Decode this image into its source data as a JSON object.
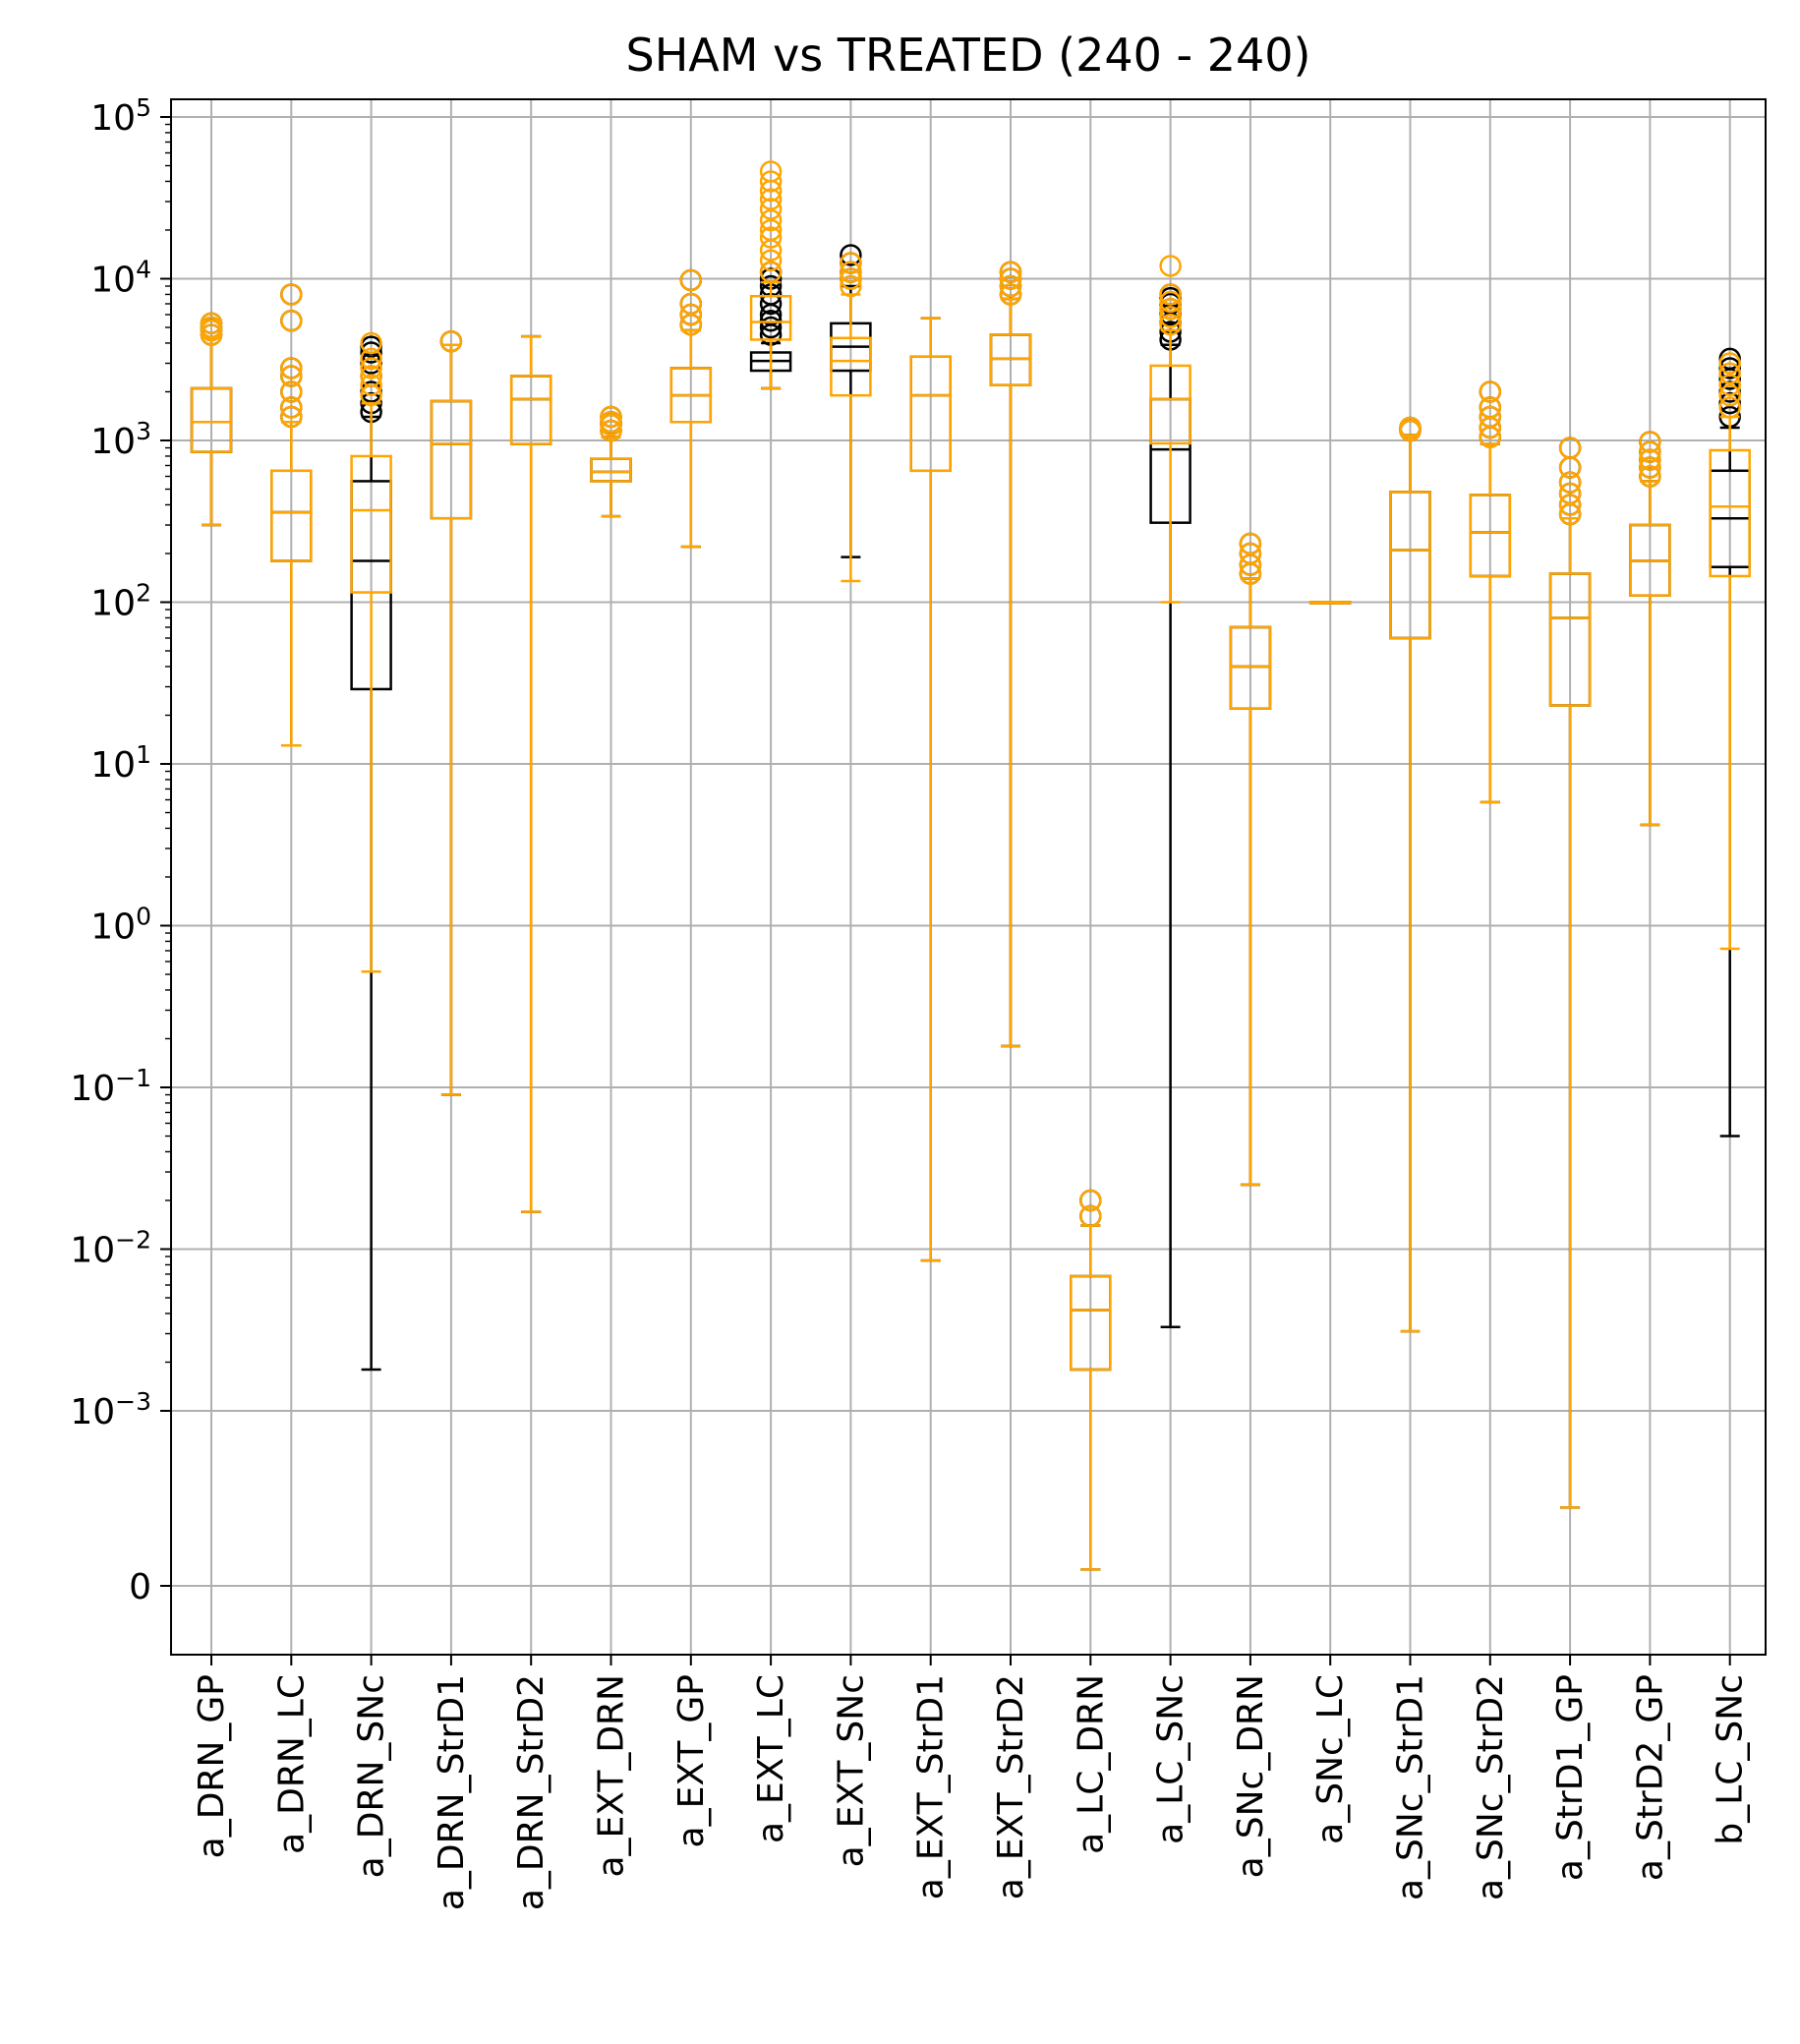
{
  "chart_data": {
    "type": "box",
    "title": "SHAM vs TREATED (240 - 240)",
    "xlabel": "",
    "ylabel": "",
    "yscale": "symlog",
    "grid": true,
    "yticks": [
      {
        "value": 100000,
        "label": "10^5"
      },
      {
        "value": 10000,
        "label": "10^4"
      },
      {
        "value": 1000,
        "label": "10^3"
      },
      {
        "value": 100,
        "label": "10^2"
      },
      {
        "value": 10,
        "label": "10^1"
      },
      {
        "value": 1,
        "label": "10^0"
      },
      {
        "value": 0.1,
        "label": "10^−1"
      },
      {
        "value": 0.01,
        "label": "10^−2"
      },
      {
        "value": 0.001,
        "label": "10^−3"
      },
      {
        "value": 0,
        "label": "0"
      }
    ],
    "categories": [
      "a_DRN_GP",
      "a_DRN_LC",
      "a_DRN_SNc",
      "a_DRN_StrD1",
      "a_DRN_StrD2",
      "a_EXT_DRN",
      "a_EXT_GP",
      "a_EXT_LC",
      "a_EXT_SNc",
      "a_EXT_StrD1",
      "a_EXT_StrD2",
      "a_LC_DRN",
      "a_LC_SNc",
      "a_SNc_DRN",
      "a_SNc_LC",
      "a_SNc_StrD1",
      "a_SNc_StrD2",
      "a_StrD1_GP",
      "a_StrD2_GP",
      "b_LC_SNc"
    ],
    "series": [
      {
        "color": "#000000",
        "boxes": [
          {
            "whislo": 300,
            "q1": 850,
            "med": 1300,
            "q3": 2100,
            "whishi": 4300,
            "fliers": [
              4500,
              4800,
              5000,
              5300
            ]
          },
          {
            "whislo": 13,
            "q1": 180,
            "med": 360,
            "q3": 650,
            "whishi": 1300,
            "fliers": [
              1400,
              1600,
              2000,
              2500,
              2800,
              5500,
              8000
            ]
          },
          {
            "whislo": 0.0018,
            "q1": 29,
            "med": 180,
            "q3": 560,
            "whishi": 1400,
            "fliers": [
              1500,
              1700,
              2000,
              2500,
              3000,
              3500,
              3800
            ]
          },
          {
            "whislo": 0.09,
            "q1": 330,
            "med": 950,
            "q3": 1750,
            "whishi": 3900,
            "fliers": [
              4100
            ]
          },
          {
            "whislo": 0.017,
            "q1": 950,
            "med": 1800,
            "q3": 2500,
            "whishi": 4400,
            "fliers": []
          },
          {
            "whislo": 340,
            "q1": 560,
            "med": 640,
            "q3": 770,
            "whishi": 1050,
            "fliers": [
              1150,
              1250,
              1300,
              1400
            ]
          },
          {
            "whislo": 220,
            "q1": 1300,
            "med": 1900,
            "q3": 2800,
            "whishi": 4800,
            "fliers": [
              5200,
              6000,
              7000,
              9800
            ]
          },
          {
            "whislo": 2100,
            "q1": 2700,
            "med": 3100,
            "q3": 3500,
            "whishi": 4000,
            "fliers": [
              4500,
              5000,
              5500,
              6000,
              7000,
              8000,
              9000,
              10000,
              11000
            ]
          },
          {
            "whislo": 190,
            "q1": 2700,
            "med": 3800,
            "q3": 5300,
            "whishi": 9000,
            "fliers": [
              10000,
              11000,
              12500,
              14000
            ]
          },
          {
            "whislo": 0.0085,
            "q1": 650,
            "med": 1900,
            "q3": 3300,
            "whishi": 5700,
            "fliers": []
          },
          {
            "whislo": 0.18,
            "q1": 2200,
            "med": 3200,
            "q3": 4500,
            "whishi": 7500,
            "fliers": [
              8000,
              9000,
              10000,
              11000
            ]
          },
          {
            "whislo": 0.0001,
            "q1": 0.0018,
            "med": 0.0042,
            "q3": 0.0068,
            "whishi": 0.014,
            "fliers": [
              0.016,
              0.02
            ]
          },
          {
            "whislo": 0.0033,
            "q1": 310,
            "med": 880,
            "q3": 1800,
            "whishi": 3900,
            "fliers": [
              4200,
              4700,
              5300,
              6000,
              6500,
              7000,
              7600,
              8000
            ]
          },
          {
            "whislo": 0.025,
            "q1": 22,
            "med": 40,
            "q3": 70,
            "whishi": 140,
            "fliers": [
              150,
              170,
              200,
              230
            ]
          },
          {
            "whislo": 100,
            "q1": 100,
            "med": 100,
            "q3": 100,
            "whishi": 100,
            "fliers": []
          },
          {
            "whislo": 0.0031,
            "q1": 60,
            "med": 210,
            "q3": 480,
            "whishi": 1080,
            "fliers": [
              1150,
              1200
            ]
          },
          {
            "whislo": 5.8,
            "q1": 145,
            "med": 270,
            "q3": 460,
            "whishi": 950,
            "fliers": [
              1050,
              1200,
              1400,
              1600,
              2000
            ]
          },
          {
            "whislo": 0.00048,
            "q1": 23,
            "med": 80,
            "q3": 150,
            "whishi": 330,
            "fliers": [
              350,
              400,
              470,
              550,
              680,
              900
            ]
          },
          {
            "whislo": 4.2,
            "q1": 110,
            "med": 180,
            "q3": 300,
            "whishi": 560,
            "fliers": [
              600,
              680,
              760,
              850,
              980
            ]
          },
          {
            "whislo": 0.05,
            "q1": 165,
            "med": 330,
            "q3": 650,
            "whishi": 1200,
            "fliers": [
              1400,
              1700,
              2000,
              2400,
              2800,
              3200
            ]
          }
        ]
      },
      {
        "color": "#ffa500",
        "boxes": [
          {
            "whislo": 300,
            "q1": 850,
            "med": 1300,
            "q3": 2100,
            "whishi": 4300,
            "fliers": [
              4500,
              4800,
              5000,
              5300
            ]
          },
          {
            "whislo": 13,
            "q1": 180,
            "med": 360,
            "q3": 650,
            "whishi": 1300,
            "fliers": [
              1400,
              1600,
              2000,
              2500,
              2800,
              5500,
              8000
            ]
          },
          {
            "whislo": 0.52,
            "q1": 115,
            "med": 370,
            "q3": 800,
            "whishi": 1700,
            "fliers": [
              1900,
              2200,
              2500,
              2800,
              3200,
              4000
            ]
          },
          {
            "whislo": 0.09,
            "q1": 330,
            "med": 950,
            "q3": 1750,
            "whishi": 3900,
            "fliers": [
              4100
            ]
          },
          {
            "whislo": 0.017,
            "q1": 950,
            "med": 1800,
            "q3": 2500,
            "whishi": 4400,
            "fliers": []
          },
          {
            "whislo": 340,
            "q1": 560,
            "med": 640,
            "q3": 770,
            "whishi": 1050,
            "fliers": [
              1150,
              1250,
              1300,
              1400
            ]
          },
          {
            "whislo": 220,
            "q1": 1300,
            "med": 1900,
            "q3": 2800,
            "whishi": 4800,
            "fliers": [
              5200,
              6000,
              7000,
              9800
            ]
          },
          {
            "whislo": 2100,
            "q1": 4200,
            "med": 5400,
            "q3": 7800,
            "whishi": 9500,
            "fliers": [
              11000,
              13000,
              15000,
              18000,
              20000,
              23000,
              27000,
              31000,
              35000,
              40000,
              46000
            ]
          },
          {
            "whislo": 135,
            "q1": 1900,
            "med": 3100,
            "q3": 4300,
            "whishi": 8000,
            "fliers": [
              9000,
              10000,
              11000,
              12500
            ]
          },
          {
            "whislo": 0.0085,
            "q1": 650,
            "med": 1900,
            "q3": 3300,
            "whishi": 5700,
            "fliers": []
          },
          {
            "whislo": 0.18,
            "q1": 2200,
            "med": 3200,
            "q3": 4500,
            "whishi": 7500,
            "fliers": [
              8000,
              9000,
              10000,
              11000
            ]
          },
          {
            "whislo": 0.0001,
            "q1": 0.0018,
            "med": 0.0042,
            "q3": 0.0068,
            "whishi": 0.014,
            "fliers": [
              0.016,
              0.02
            ]
          },
          {
            "whislo": 100,
            "q1": 960,
            "med": 1800,
            "q3": 2900,
            "whishi": 4800,
            "fliers": [
              5200,
              5800,
              6500,
              7200,
              8000,
              12000
            ]
          },
          {
            "whislo": 0.025,
            "q1": 22,
            "med": 40,
            "q3": 70,
            "whishi": 140,
            "fliers": [
              150,
              170,
              200,
              230
            ]
          },
          {
            "whislo": 100,
            "q1": 100,
            "med": 100,
            "q3": 100,
            "whishi": 100,
            "fliers": []
          },
          {
            "whislo": 0.0031,
            "q1": 60,
            "med": 210,
            "q3": 480,
            "whishi": 1080,
            "fliers": [
              1150,
              1200
            ]
          },
          {
            "whislo": 5.8,
            "q1": 145,
            "med": 270,
            "q3": 460,
            "whishi": 950,
            "fliers": [
              1050,
              1200,
              1400,
              1600,
              2000
            ]
          },
          {
            "whislo": 0.00048,
            "q1": 23,
            "med": 80,
            "q3": 150,
            "whishi": 330,
            "fliers": [
              350,
              400,
              470,
              550,
              680,
              900
            ]
          },
          {
            "whislo": 4.2,
            "q1": 110,
            "med": 180,
            "q3": 300,
            "whishi": 560,
            "fliers": [
              600,
              680,
              760,
              850,
              980
            ]
          },
          {
            "whislo": 0.72,
            "q1": 145,
            "med": 390,
            "q3": 870,
            "whishi": 1400,
            "fliers": [
              1600,
              1900,
              2200,
              2600,
              3000
            ]
          }
        ]
      }
    ]
  }
}
